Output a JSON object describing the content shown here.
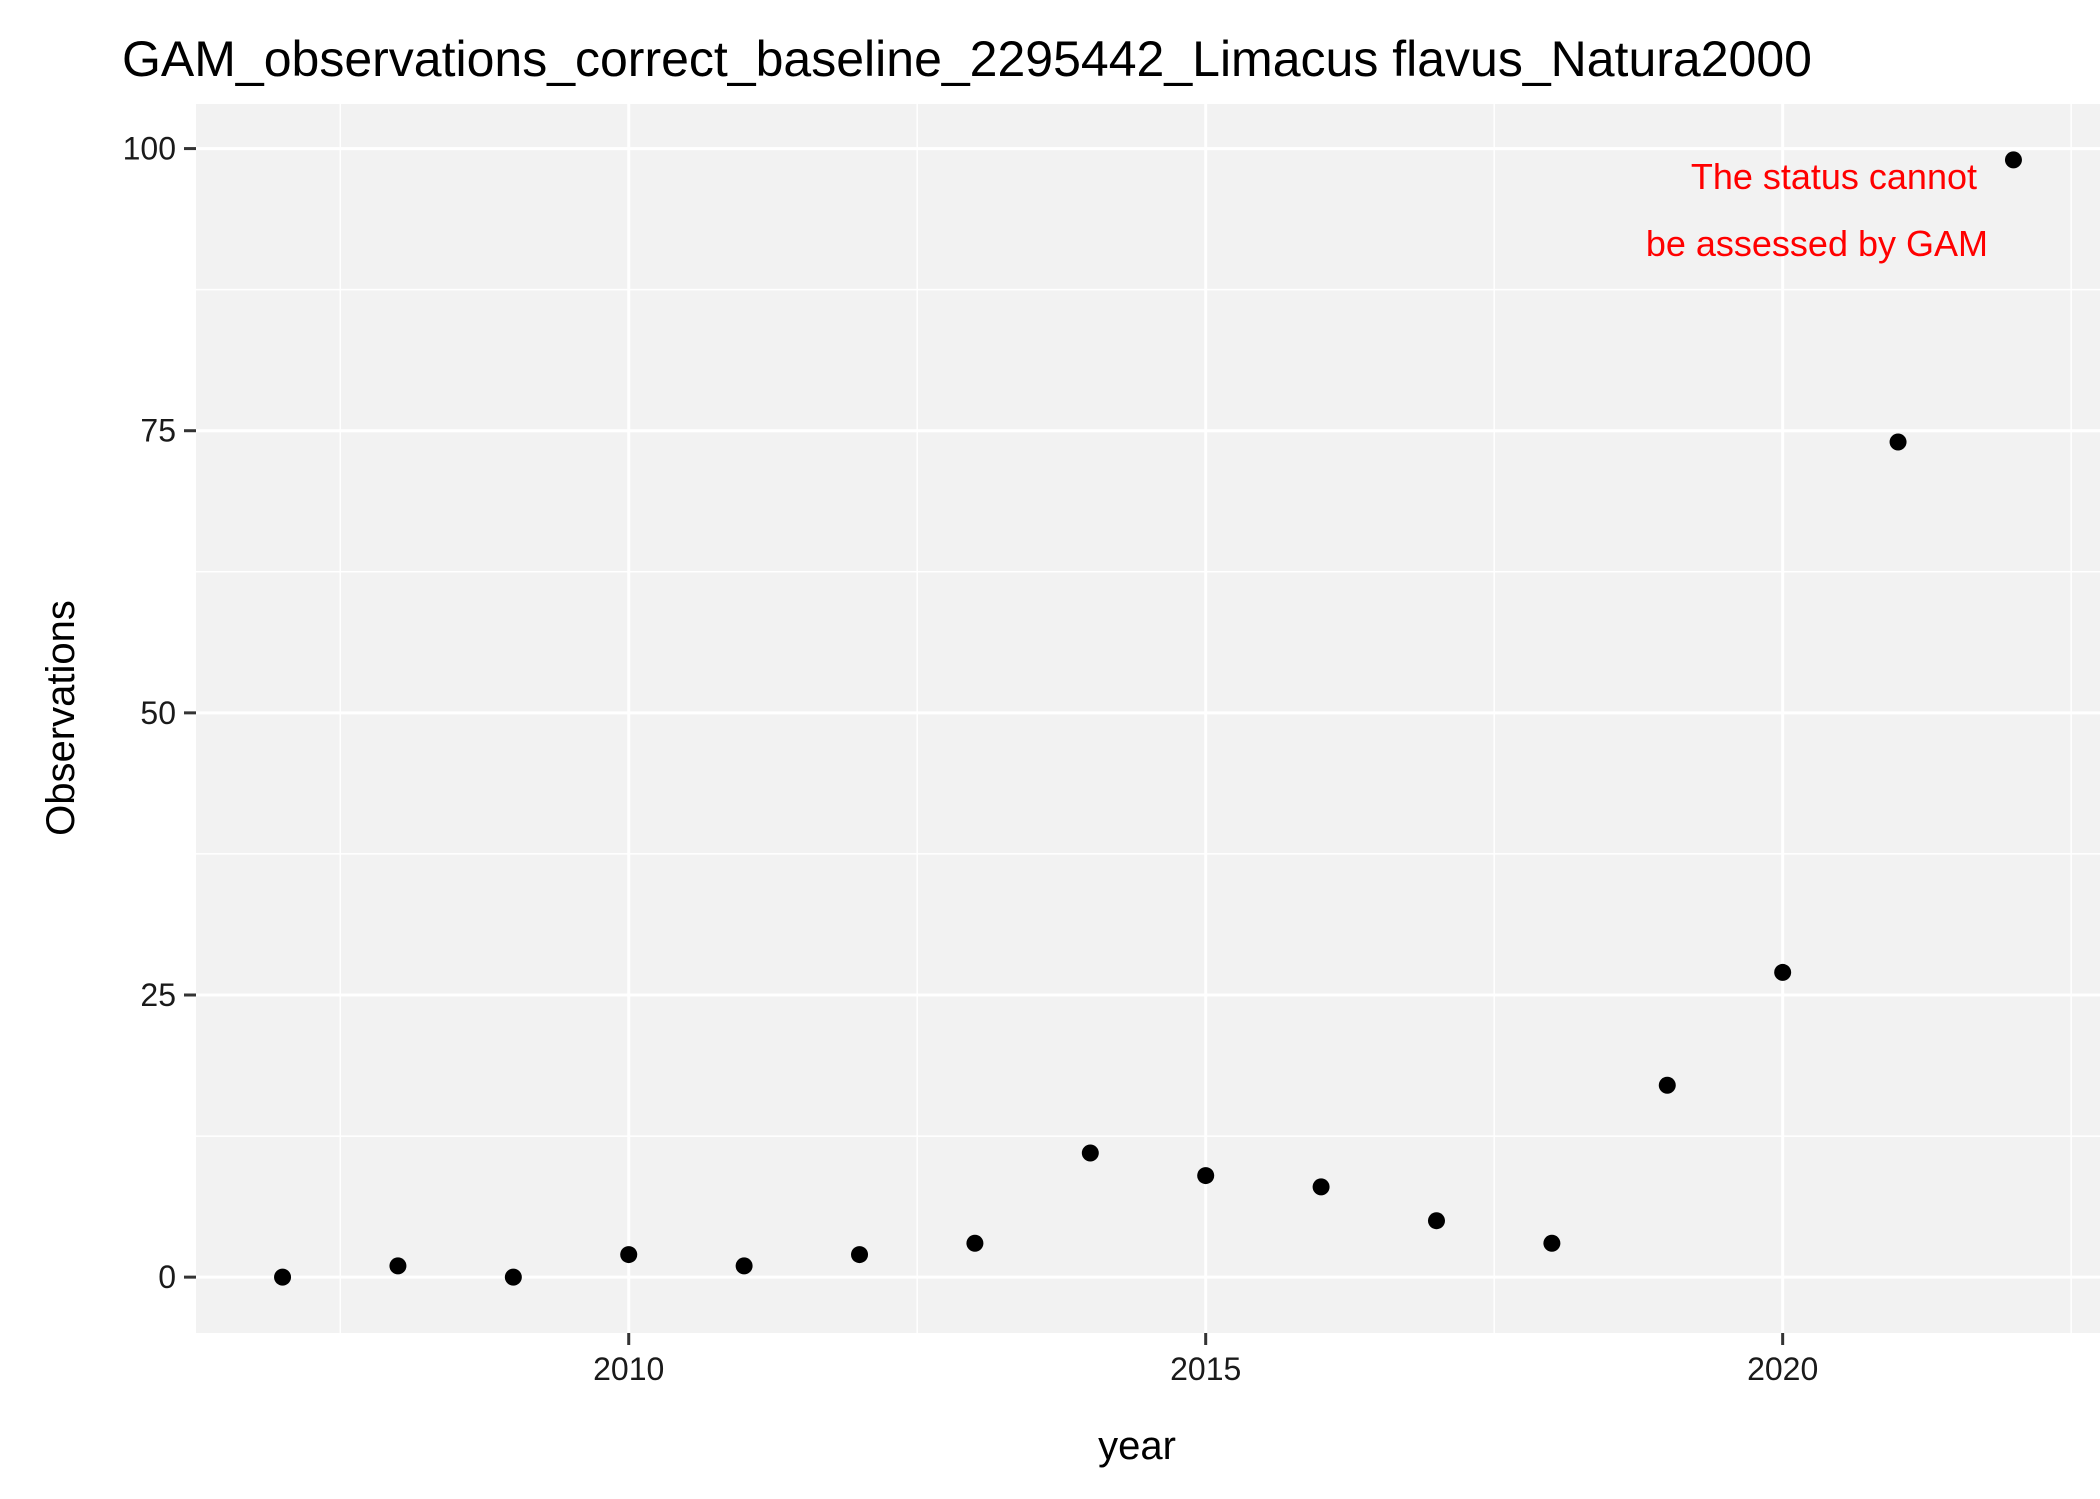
{
  "chart_data": {
    "type": "scatter",
    "title": "GAM_observations_correct_baseline_2295442_Limacus flavus_Natura2000",
    "xlabel": "year",
    "ylabel": "Observations",
    "x": [
      2007,
      2008,
      2009,
      2010,
      2011,
      2012,
      2013,
      2014,
      2015,
      2016,
      2017,
      2018,
      2019,
      2020,
      2021,
      2022
    ],
    "y": [
      0,
      1,
      0,
      2,
      1,
      2,
      3,
      11,
      9,
      8,
      5,
      3,
      17,
      27,
      74,
      99
    ],
    "xlim": [
      2006.25,
      2022.75
    ],
    "ylim": [
      -4.95,
      103.95
    ],
    "x_ticks": [
      2010,
      2015,
      2020
    ],
    "x_minor_ticks": [
      2007.5,
      2012.5,
      2017.5,
      2022.5
    ],
    "y_ticks": [
      0,
      25,
      50,
      75,
      100
    ],
    "y_minor_ticks": [
      12.5,
      37.5,
      62.5,
      87.5
    ],
    "grid": true,
    "legend": "none",
    "annotation": {
      "lines": [
        "The status cannot",
        "be assessed by GAM"
      ],
      "color": "#ff0000"
    },
    "colors": {
      "panel_background": "#f2f2f2",
      "grid": "#ffffff",
      "points": "#000000",
      "tick_marks": "#333333"
    }
  }
}
